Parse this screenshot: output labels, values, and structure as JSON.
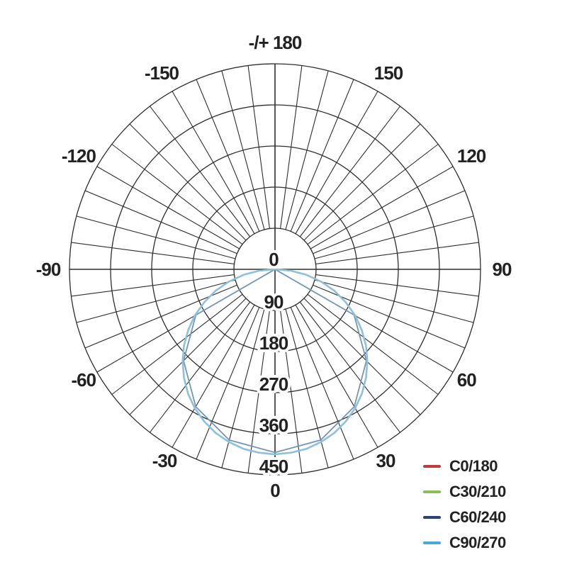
{
  "page": {
    "background": "#ffffff"
  },
  "chart_data": {
    "type": "polar_photometric",
    "title": "",
    "description": "Luminous intensity distribution curve, polar diagram",
    "angle_unit": "deg",
    "radial_unit": "cd",
    "grid": true,
    "grid_color": "#2e2e2e",
    "text_color": "#222222",
    "radial_ticks": [
      0,
      90,
      180,
      270,
      360,
      450
    ],
    "radial_max": 450,
    "spoke_step_deg": 7.5,
    "legend_position": "bottom-right",
    "angle_labels": [
      {
        "angle": 180,
        "label": "-/+ 180"
      },
      {
        "angle": 150,
        "label": "150"
      },
      {
        "angle": 120,
        "label": "120"
      },
      {
        "angle": 90,
        "label": "90"
      },
      {
        "angle": 60,
        "label": "60"
      },
      {
        "angle": 30,
        "label": "30"
      },
      {
        "angle": 0,
        "label": "0"
      },
      {
        "angle": -30,
        "label": "-30"
      },
      {
        "angle": -60,
        "label": "-60"
      },
      {
        "angle": -90,
        "label": "-90"
      },
      {
        "angle": -120,
        "label": "-120"
      },
      {
        "angle": -150,
        "label": "-150"
      }
    ],
    "sample_angles_deg": [
      -90,
      -85,
      -80,
      -75,
      -70,
      -65,
      -60,
      -55,
      -50,
      -45,
      -40,
      -35,
      -30,
      -25,
      -20,
      -15,
      -10,
      -5,
      0,
      5,
      10,
      15,
      20,
      25,
      30,
      35,
      40,
      45,
      50,
      55,
      60,
      65,
      70,
      75,
      80,
      85,
      90
    ],
    "series": [
      {
        "name": "C0/180",
        "color": "#c03a3e",
        "values": [
          0,
          35,
          70,
          105,
          139,
          171,
          203,
          232,
          260,
          286,
          310,
          332,
          351,
          367,
          381,
          391,
          399,
          403,
          405,
          403,
          399,
          391,
          381,
          367,
          351,
          332,
          310,
          286,
          260,
          232,
          203,
          171,
          139,
          105,
          70,
          35,
          0
        ]
      },
      {
        "name": "C30/210",
        "color": "#8abf55",
        "values": [
          0,
          35,
          70,
          105,
          139,
          171,
          203,
          232,
          260,
          286,
          310,
          332,
          351,
          367,
          381,
          391,
          399,
          403,
          405,
          403,
          399,
          391,
          381,
          367,
          351,
          332,
          310,
          286,
          260,
          232,
          203,
          171,
          139,
          105,
          70,
          35,
          0
        ]
      },
      {
        "name": "C60/240",
        "color": "#2b4470",
        "angles_deg": [
          -90,
          -60,
          -45,
          -30,
          -15,
          0,
          15,
          30,
          45,
          60,
          90
        ],
        "values": [
          0,
          200,
          283,
          347,
          387,
          401,
          387,
          347,
          283,
          200,
          0
        ]
      },
      {
        "name": "C90/270",
        "color": "#47a8dc",
        "values": [
          0,
          35,
          70,
          105,
          139,
          171,
          203,
          232,
          260,
          286,
          310,
          332,
          351,
          367,
          381,
          391,
          399,
          403,
          405,
          403,
          399,
          391,
          381,
          367,
          351,
          332,
          310,
          286,
          260,
          232,
          203,
          171,
          139,
          105,
          70,
          35,
          0
        ]
      }
    ]
  }
}
